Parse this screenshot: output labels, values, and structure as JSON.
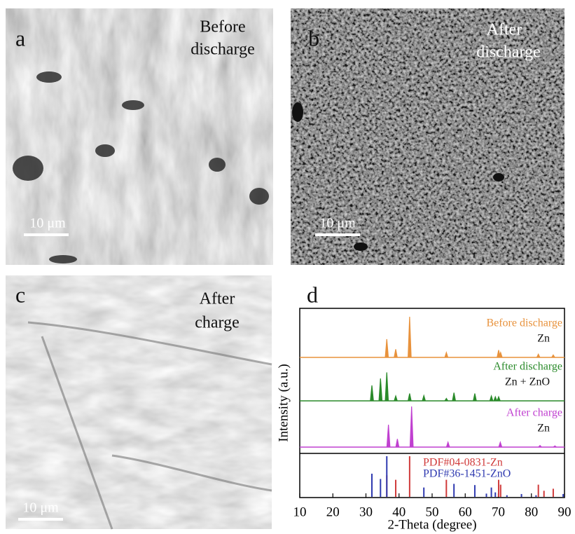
{
  "panels": [
    {
      "label": "a",
      "caption": [
        "Before",
        "discharge"
      ],
      "scale_bar": "10 μm"
    },
    {
      "label": "b",
      "caption": [
        "After",
        "discharge"
      ],
      "scale_bar": "10 μm"
    },
    {
      "label": "c",
      "caption": [
        "After",
        "charge"
      ],
      "scale_bar": "10 μm"
    }
  ],
  "chart_data": {
    "type": "xrd",
    "label": "d",
    "xlabel": "2-Theta (degree)",
    "ylabel": "Intensity (a.u.)",
    "xlim": [
      10,
      90
    ],
    "xticks": [
      10,
      20,
      30,
      40,
      50,
      60,
      70,
      80,
      90
    ],
    "series": [
      {
        "name": "Before discharge",
        "phase": "Zn",
        "color": "#e8923c",
        "x": [
          36.3,
          39.0,
          43.2,
          54.3,
          70.1,
          70.7,
          82.1,
          86.6
        ],
        "values": [
          45,
          20,
          100,
          12,
          18,
          12,
          8,
          6
        ]
      },
      {
        "name": "After discharge",
        "phase": "Zn + ZnO",
        "color": "#2a8a2a",
        "x": [
          31.8,
          34.4,
          36.3,
          39.0,
          43.2,
          47.5,
          54.3,
          56.6,
          62.9,
          67.9,
          69.1,
          70.1
        ],
        "values": [
          38,
          55,
          70,
          12,
          18,
          13,
          6,
          20,
          18,
          12,
          10,
          10
        ]
      },
      {
        "name": "After charge",
        "phase": "Zn",
        "color": "#c040d0",
        "x": [
          36.8,
          39.5,
          43.8,
          54.8,
          70.6,
          82.6,
          87.1
        ],
        "values": [
          55,
          20,
          100,
          12,
          12,
          4,
          3
        ]
      }
    ],
    "references": [
      {
        "name": "PDF#04-0831-Zn",
        "color": "#d03a3a",
        "x": [
          36.3,
          39.0,
          43.2,
          54.3,
          70.1,
          70.7,
          82.1,
          83.8,
          86.6
        ],
        "values": [
          53,
          42,
          100,
          42,
          42,
          30,
          30,
          15,
          20
        ]
      },
      {
        "name": "PDF#36-1451-ZnO",
        "color": "#2f3ab0",
        "x": [
          31.8,
          34.4,
          36.3,
          47.5,
          56.6,
          62.9,
          66.4,
          67.9,
          69.1,
          72.6,
          77.0,
          81.4,
          89.6
        ],
        "values": [
          57,
          44,
          100,
          23,
          32,
          29,
          8,
          23,
          11,
          4,
          7,
          4,
          7
        ]
      }
    ]
  }
}
